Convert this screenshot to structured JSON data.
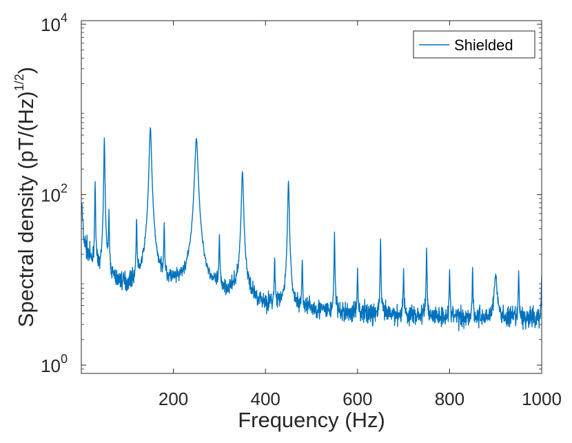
{
  "chart_data": {
    "type": "line",
    "title": "",
    "xlabel": "Frequency (Hz)",
    "ylabel_main": "Spectral density (pT/(Hz)",
    "ylabel_sup": "1/2",
    "ylabel_close": ")",
    "xlim": [
      0,
      1000
    ],
    "ylim": [
      0.8,
      11000
    ],
    "yscale": "log",
    "grid": false,
    "legend_position": "top-right",
    "series_color": "#0072BD",
    "x_ticks": [
      {
        "value": 200,
        "label": "200"
      },
      {
        "value": 400,
        "label": "400"
      },
      {
        "value": 600,
        "label": "600"
      },
      {
        "value": 800,
        "label": "800"
      },
      {
        "value": 1000,
        "label": "1000"
      }
    ],
    "y_ticks": [
      {
        "value": 1,
        "base": "10",
        "exp": "0"
      },
      {
        "value": 100,
        "base": "10",
        "exp": "2"
      },
      {
        "value": 10000,
        "base": "10",
        "exp": "4"
      }
    ],
    "series": [
      {
        "name": "Shielded",
        "baseline": [
          [
            0,
            90
          ],
          [
            5,
            30
          ],
          [
            15,
            20
          ],
          [
            30,
            12
          ],
          [
            60,
            10
          ],
          [
            100,
            8
          ],
          [
            140,
            8.5
          ],
          [
            200,
            8
          ],
          [
            240,
            7.5
          ],
          [
            300,
            7
          ],
          [
            340,
            6.5
          ],
          [
            380,
            5.5
          ],
          [
            400,
            5
          ],
          [
            450,
            4.5
          ],
          [
            500,
            4.5
          ],
          [
            550,
            4
          ],
          [
            600,
            4
          ],
          [
            700,
            3.8
          ],
          [
            800,
            3.7
          ],
          [
            900,
            3.5
          ],
          [
            1000,
            3.5
          ]
        ],
        "peaks": [
          {
            "x": 30,
            "y": 130,
            "w": 0.8
          },
          {
            "x": 50,
            "y": 450,
            "w": 1.0
          },
          {
            "x": 60,
            "y": 50,
            "w": 0.8
          },
          {
            "x": 120,
            "y": 42,
            "w": 0.8
          },
          {
            "x": 150,
            "y": 600,
            "w": 2.2
          },
          {
            "x": 180,
            "y": 36,
            "w": 0.8
          },
          {
            "x": 250,
            "y": 450,
            "w": 3.0
          },
          {
            "x": 300,
            "y": 25,
            "w": 0.8
          },
          {
            "x": 350,
            "y": 180,
            "w": 2.0
          },
          {
            "x": 420,
            "y": 13,
            "w": 0.8
          },
          {
            "x": 450,
            "y": 140,
            "w": 1.5
          },
          {
            "x": 480,
            "y": 12,
            "w": 0.8
          },
          {
            "x": 550,
            "y": 32,
            "w": 0.8
          },
          {
            "x": 600,
            "y": 10,
            "w": 0.8
          },
          {
            "x": 650,
            "y": 25,
            "w": 0.8
          },
          {
            "x": 700,
            "y": 10,
            "w": 0.8
          },
          {
            "x": 750,
            "y": 20,
            "w": 0.8
          },
          {
            "x": 800,
            "y": 9,
            "w": 0.8
          },
          {
            "x": 850,
            "y": 10,
            "w": 0.8
          },
          {
            "x": 900,
            "y": 8,
            "w": 3.0
          },
          {
            "x": 950,
            "y": 9,
            "w": 0.8
          },
          {
            "x": 1000,
            "y": 8,
            "w": 0.8
          }
        ]
      }
    ]
  }
}
